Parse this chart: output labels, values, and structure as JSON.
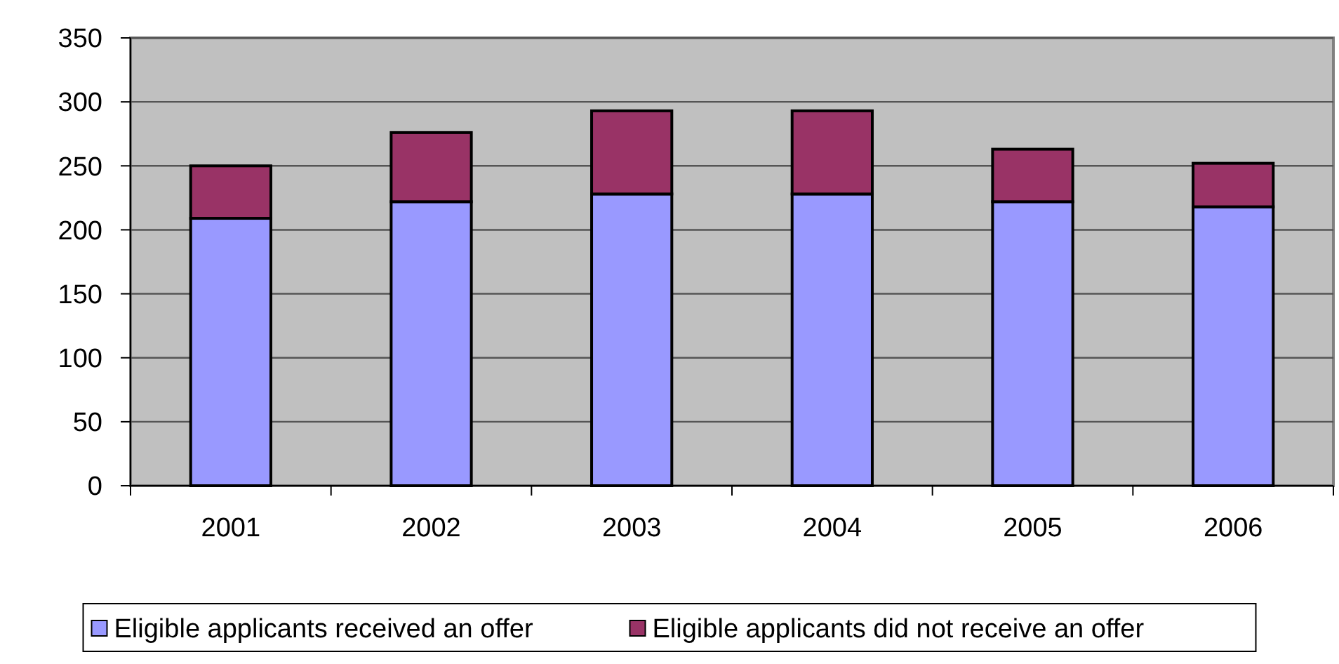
{
  "chart_data": {
    "type": "bar",
    "stacked": true,
    "categories": [
      "2001",
      "2002",
      "2003",
      "2004",
      "2005",
      "2006"
    ],
    "series": [
      {
        "name": "Eligible applicants received an offer",
        "color": "#9999ff",
        "values": [
          209,
          222,
          228,
          228,
          222,
          218
        ]
      },
      {
        "name": "Eligible applicants did not receive an offer",
        "color": "#993366",
        "values": [
          41,
          54,
          65,
          65,
          41,
          34
        ]
      }
    ],
    "ylim": [
      0,
      350
    ],
    "yticks": [
      0,
      50,
      100,
      150,
      200,
      250,
      300,
      350
    ],
    "grid": "y",
    "legend": "bottom"
  }
}
